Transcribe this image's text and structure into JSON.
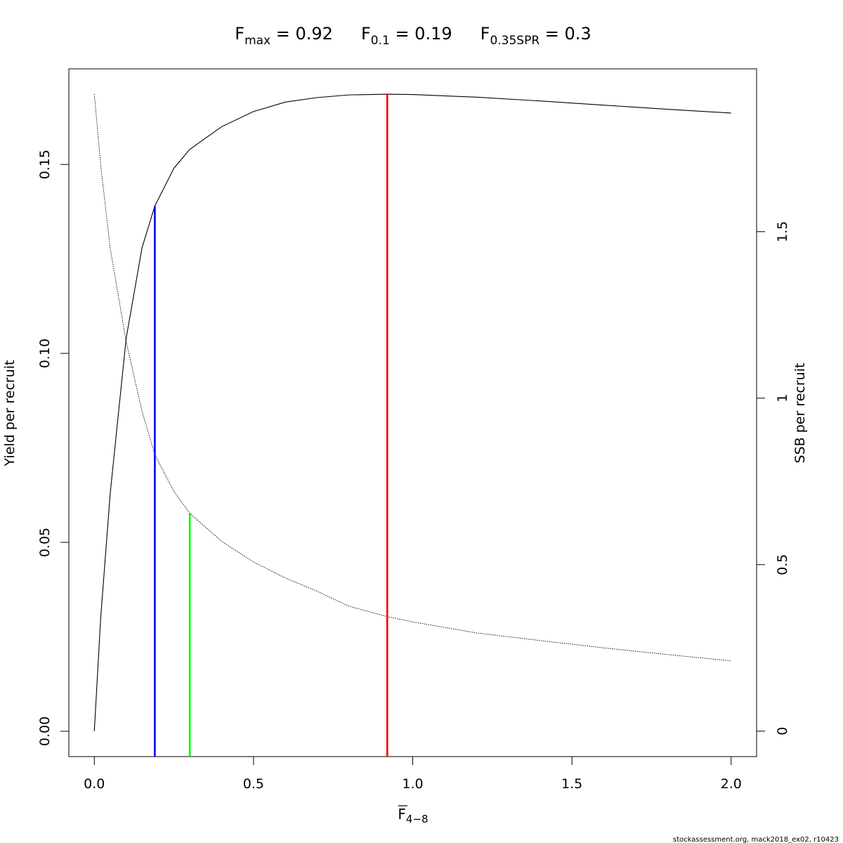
{
  "chart_data": {
    "type": "line",
    "title": [
      {
        "main": "F",
        "sub": "max",
        "text": " = 0.92"
      },
      {
        "main": "F",
        "sub": "0.1",
        "text": " = 0.19"
      },
      {
        "main": "F",
        "sub": "0.35SPR",
        "text": " = 0.3"
      }
    ],
    "xlabel": {
      "main": "F",
      "sub": "4−8"
    },
    "ylabel": "Yield per recruit",
    "y2label": "SSB per recruit",
    "footer": "stockassessment.org, mack2018_ex02, r10423",
    "x": [
      0,
      0.02,
      0.05,
      0.1,
      0.15,
      0.19,
      0.25,
      0.3,
      0.4,
      0.5,
      0.6,
      0.7,
      0.8,
      0.92,
      1.0,
      1.2,
      1.4,
      1.6,
      1.8,
      2.0
    ],
    "series": [
      {
        "name": "Yield per recruit",
        "color": "#000000",
        "style": "solid",
        "values": [
          0,
          0.03,
          0.063,
          0.104,
          0.128,
          0.139,
          0.149,
          0.154,
          0.16,
          0.164,
          0.1665,
          0.1677,
          0.1684,
          0.1686,
          0.1685,
          0.1678,
          0.1668,
          0.1657,
          0.1646,
          0.1636
        ]
      },
      {
        "name": "SSB per recruit",
        "color": "#000000",
        "style": "dotted",
        "axis": "y2",
        "values": [
          1.913,
          1.7,
          1.45,
          1.17,
          0.96,
          0.83,
          0.72,
          0.654,
          0.57,
          0.508,
          0.46,
          0.42,
          0.375,
          0.344,
          0.328,
          0.295,
          0.272,
          0.25,
          0.23,
          0.211
        ]
      }
    ],
    "reference_lines": [
      {
        "x": 0.92,
        "y": 0.1686,
        "color": "#ff0000"
      },
      {
        "x": 0.19,
        "y": 0.139,
        "color": "#0000ff"
      },
      {
        "x": 0.3,
        "y": 0.654,
        "color": "#00ff00",
        "axis": "y2"
      }
    ],
    "xlim": [
      -0.08,
      2.08
    ],
    "xticks": [
      {
        "value": 0,
        "label": "0.0"
      },
      0.5,
      {
        "value": 1,
        "label": "1.0"
      },
      1.5,
      {
        "value": 2,
        "label": "2.0"
      }
    ],
    "ylim": [
      -0.0067,
      0.1753
    ],
    "yticks": [
      {
        "value": 0,
        "label": "0.00"
      },
      0.05,
      {
        "value": 0.1,
        "label": "0.10"
      },
      0.15
    ],
    "y2lim": [
      -0.0765,
      1.989
    ],
    "y2ticks": [
      0,
      0.5,
      1,
      1.5
    ]
  }
}
